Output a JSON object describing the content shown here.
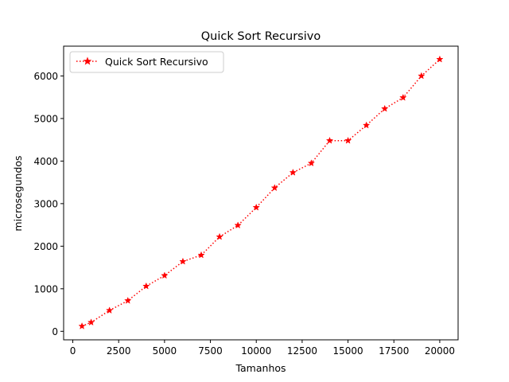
{
  "chart_data": {
    "type": "line",
    "title": "Quick Sort Recursivo",
    "xlabel": "Tamanhos",
    "ylabel": "microsegundos",
    "xlim": [
      -500,
      21000
    ],
    "ylim": [
      -200,
      6700
    ],
    "x_ticks": [
      0,
      2500,
      5000,
      7500,
      10000,
      12500,
      15000,
      17500,
      20000
    ],
    "y_ticks": [
      0,
      1000,
      2000,
      3000,
      4000,
      5000,
      6000
    ],
    "grid": false,
    "legend_position": "top-left",
    "series": [
      {
        "name": "Quick Sort Recursivo",
        "color": "#ff0000",
        "line_style": "dotted",
        "marker": "star",
        "x": [
          500,
          1000,
          2000,
          3000,
          4000,
          5000,
          6000,
          7000,
          8000,
          9000,
          10000,
          11000,
          12000,
          13000,
          14000,
          15000,
          16000,
          17000,
          18000,
          19000,
          20000
        ],
        "y": [
          120,
          210,
          490,
          720,
          1060,
          1310,
          1640,
          1790,
          2220,
          2490,
          2910,
          3370,
          3730,
          3950,
          4480,
          4480,
          4840,
          5230,
          5490,
          6000,
          6390
        ]
      }
    ]
  }
}
